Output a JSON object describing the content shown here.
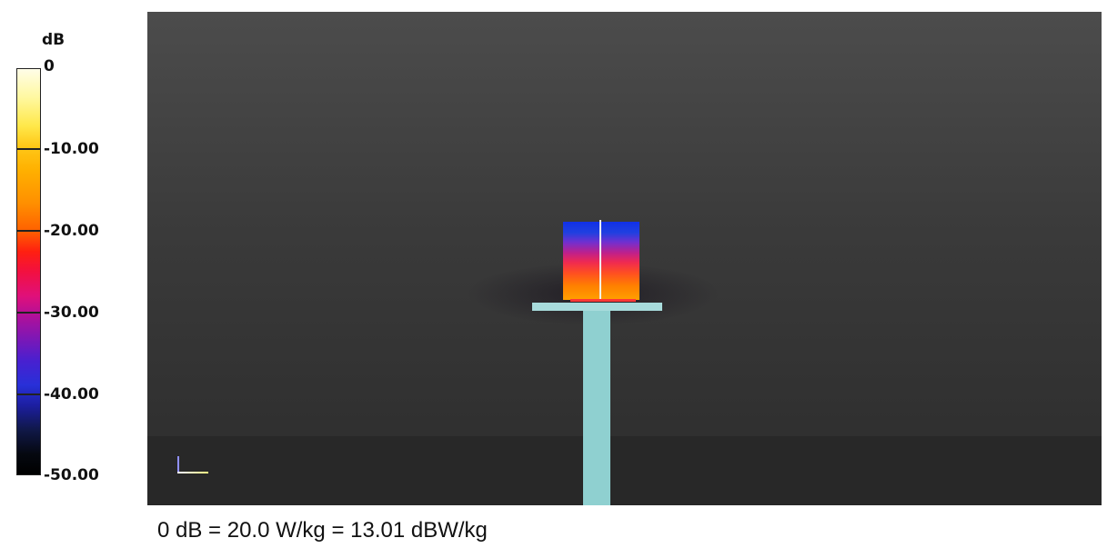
{
  "colorbar": {
    "unit": "dB",
    "ticks": [
      "0",
      "-10.00",
      "-20.00",
      "-30.00",
      "-40.00",
      "-50.00"
    ],
    "range": [
      -50,
      0
    ]
  },
  "caption": "0 dB = 20.0 W/kg = 13.01 dBW/kg",
  "colors": {
    "background": "#3a3a3a",
    "device": "#8fd0d0",
    "axis_x": "#ffffff",
    "axis_y": "#9090ff"
  }
}
